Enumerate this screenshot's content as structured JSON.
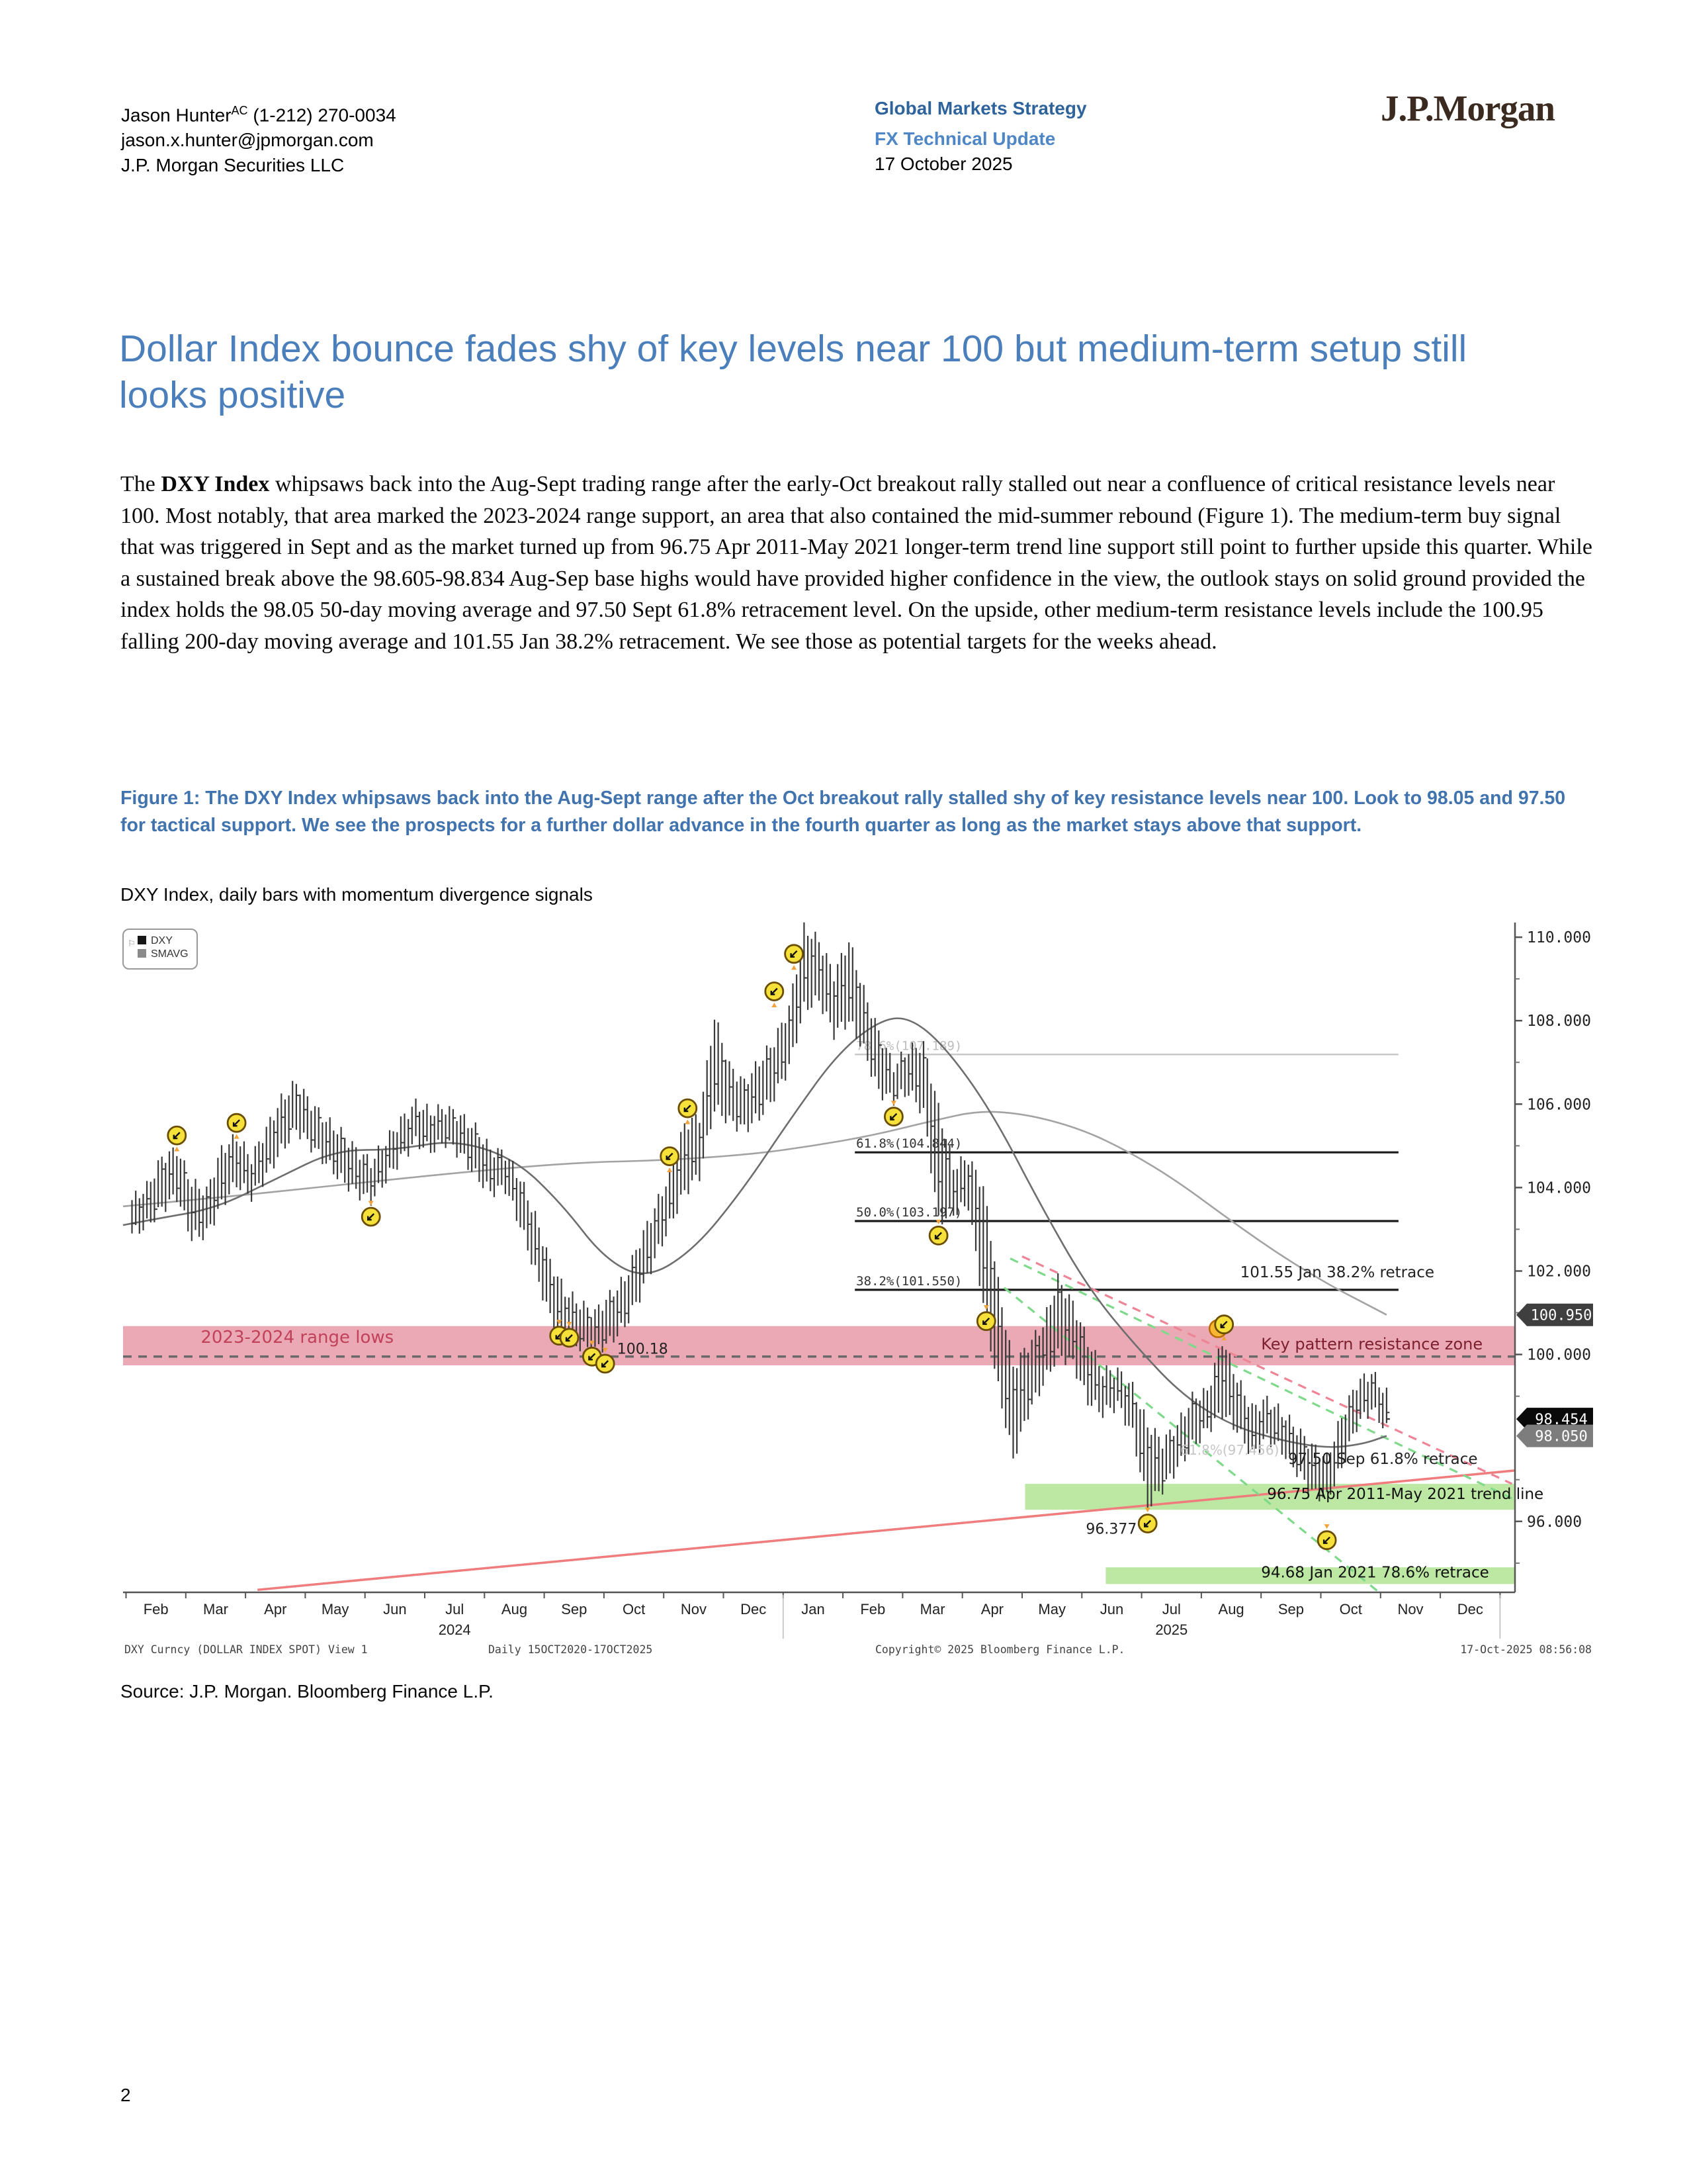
{
  "page": {
    "number": "2"
  },
  "header": {
    "author_name": "Jason Hunter",
    "author_sup": "AC",
    "author_phone": " (1-212) 270-0034",
    "author_email": "jason.x.hunter@jpmorgan.com",
    "author_firm": "J.P. Morgan Securities LLC",
    "strategy_line": "Global Markets Strategy",
    "report_type": "FX Technical Update",
    "date": "17 October 2025",
    "logo_text": "J.P.Morgan"
  },
  "title": "Dollar Index bounce fades shy of key levels near 100 but medium-term setup still looks positive",
  "body": {
    "lead": "The ",
    "bold": "DXY Index",
    "rest": " whipsaws back into the Aug-Sept trading range after the early-Oct breakout rally stalled out near a confluence of critical resistance levels near 100. Most notably, that area marked the 2023-2024 range support, an area that also contained the mid-summer rebound (Figure 1). The medium-term buy signal that was triggered in Sept and as the market turned up from 96.75 Apr 2011-May 2021 longer-term trend line support still point to further upside this quarter. While a sustained break above the 98.605-98.834 Aug-Sep base highs would have provided higher confidence in the view, the outlook stays on solid ground provided the index holds the 98.05 50-day moving average and 97.50 Sept 61.8% retracement level. On the upside, other medium-term resistance levels include the 100.95 falling 200-day moving average and 101.55 Jan 38.2% retracement. We see those as potential targets for the weeks ahead."
  },
  "figure": {
    "caption": "Figure 1: The DXY Index whipsaws back into the Aug-Sept range after the Oct breakout rally stalled shy of key resistance levels near 100. Look to 98.05 and 97.50 for tactical support. We see the prospects for a further dollar advance in the fourth quarter as long as the market stays above that support.",
    "subtitle": "DXY Index, daily bars with momentum divergence signals",
    "source": "Source: J.P. Morgan. Bloomberg Finance L.P."
  },
  "chart_data": {
    "type": "bar",
    "title": "DXY Index, daily bars with momentum divergence signals",
    "legend": [
      "DXY",
      "SMAVG"
    ],
    "colors": {
      "bar": "#383838",
      "ma50": "#6e6e6e",
      "ma200": "#a3a3a3",
      "pink_zone": "#e69aa7",
      "green_zone": "#b9e79e",
      "trend_solid": "#f07d7d",
      "dash_green": "#7fd98b",
      "dash_red": "#ee8496",
      "marker_fill": "#f5e13a",
      "marker_ring": "#6b4d00"
    },
    "x_axis": {
      "months": [
        "Feb",
        "Mar",
        "Apr",
        "May",
        "Jun",
        "Jul",
        "Aug",
        "Sep",
        "Oct",
        "Nov",
        "Dec",
        "Jan",
        "Feb",
        "Mar",
        "Apr",
        "May",
        "Jun",
        "Jul",
        "Aug",
        "Sep",
        "Oct",
        "Nov",
        "Dec"
      ],
      "year_labels": [
        {
          "text": "2024",
          "month_index": 5
        },
        {
          "text": "2025",
          "month_index": 17
        }
      ],
      "range_t": [
        -0.55,
        22.75
      ]
    },
    "y_axis": {
      "range": [
        94.3,
        110.35
      ],
      "major_ticks": [
        110,
        108,
        106,
        104,
        102,
        100,
        96
      ],
      "minor_ticks": [
        109,
        107,
        105,
        103,
        101,
        99,
        97,
        95
      ],
      "badges": [
        {
          "value": 100.95,
          "label": "100.950",
          "bg": "#3f3f3f"
        },
        {
          "value": 98.454,
          "label": "98.454",
          "bg": "#0a0a0a"
        },
        {
          "value": 98.05,
          "label": "98.050",
          "bg": "#7d7d7d"
        }
      ]
    },
    "bars": [
      [
        -0.4,
        102.9,
        103.7
      ],
      [
        -0.15,
        103.1,
        104.0
      ],
      [
        0.1,
        103.5,
        104.7
      ],
      [
        0.35,
        103.8,
        104.9
      ],
      [
        0.6,
        102.8,
        104.1
      ],
      [
        0.85,
        102.9,
        103.9
      ],
      [
        1.1,
        103.6,
        104.9
      ],
      [
        1.35,
        104.1,
        105.2
      ],
      [
        1.6,
        103.8,
        104.7
      ],
      [
        1.85,
        104.3,
        105.4
      ],
      [
        2.1,
        104.9,
        106.1
      ],
      [
        2.35,
        105.4,
        106.5
      ],
      [
        2.6,
        105.0,
        106.0
      ],
      [
        2.85,
        104.6,
        105.6
      ],
      [
        3.1,
        104.2,
        105.3
      ],
      [
        3.35,
        103.9,
        104.9
      ],
      [
        3.6,
        103.7,
        104.6
      ],
      [
        3.85,
        104.2,
        105.1
      ],
      [
        4.1,
        104.7,
        105.6
      ],
      [
        4.35,
        105.1,
        106.0
      ],
      [
        4.6,
        104.9,
        105.8
      ],
      [
        4.85,
        105.1,
        105.9
      ],
      [
        5.1,
        104.8,
        105.7
      ],
      [
        5.35,
        104.3,
        105.4
      ],
      [
        5.6,
        103.9,
        104.9
      ],
      [
        5.85,
        104.0,
        104.8
      ],
      [
        6.1,
        103.1,
        104.2
      ],
      [
        6.35,
        102.0,
        103.3
      ],
      [
        6.6,
        100.9,
        102.2
      ],
      [
        6.85,
        100.4,
        101.5
      ],
      [
        7.1,
        100.2,
        101.2
      ],
      [
        7.35,
        100.1,
        101.0
      ],
      [
        7.6,
        100.3,
        101.4
      ],
      [
        7.85,
        100.7,
        101.8
      ],
      [
        8.1,
        101.4,
        102.7
      ],
      [
        8.35,
        102.3,
        103.5
      ],
      [
        8.6,
        103.1,
        104.3
      ],
      [
        8.85,
        103.9,
        105.5
      ],
      [
        9.1,
        104.3,
        105.7
      ],
      [
        9.35,
        105.9,
        108.1
      ],
      [
        9.6,
        105.6,
        106.9
      ],
      [
        9.85,
        105.4,
        106.5
      ],
      [
        10.1,
        105.7,
        107.0
      ],
      [
        10.35,
        106.2,
        107.5
      ],
      [
        10.6,
        106.9,
        108.3
      ],
      [
        10.85,
        108.3,
        110.2
      ],
      [
        11.1,
        108.5,
        109.9
      ],
      [
        11.35,
        107.7,
        109.1
      ],
      [
        11.6,
        108.0,
        109.9
      ],
      [
        11.85,
        107.3,
        108.7
      ],
      [
        12.1,
        106.3,
        107.7
      ],
      [
        12.35,
        106.1,
        106.9
      ],
      [
        12.6,
        106.3,
        107.3
      ],
      [
        12.85,
        105.8,
        107.4
      ],
      [
        13.1,
        103.2,
        105.9
      ],
      [
        13.35,
        103.4,
        104.5
      ],
      [
        13.6,
        103.6,
        104.7
      ],
      [
        13.85,
        101.2,
        104.0
      ],
      [
        14.1,
        99.2,
        101.7
      ],
      [
        14.35,
        97.5,
        99.7
      ],
      [
        14.6,
        98.6,
        100.2
      ],
      [
        14.85,
        99.3,
        100.7
      ],
      [
        15.1,
        100.0,
        101.8
      ],
      [
        15.35,
        99.8,
        101.2
      ],
      [
        15.6,
        98.9,
        100.3
      ],
      [
        15.85,
        98.6,
        99.6
      ],
      [
        16.1,
        98.8,
        99.6
      ],
      [
        16.35,
        98.1,
        99.2
      ],
      [
        16.6,
        96.38,
        98.3
      ],
      [
        16.85,
        96.8,
        97.9
      ],
      [
        17.1,
        97.3,
        98.3
      ],
      [
        17.35,
        97.8,
        98.95
      ],
      [
        17.6,
        98.2,
        99.1
      ],
      [
        17.85,
        98.6,
        100.35
      ],
      [
        18.1,
        98.2,
        99.4
      ],
      [
        18.35,
        97.6,
        98.7
      ],
      [
        18.6,
        98.0,
        98.9
      ],
      [
        18.85,
        97.7,
        98.6
      ],
      [
        19.1,
        97.2,
        98.2
      ],
      [
        19.35,
        96.7,
        97.8
      ],
      [
        19.6,
        96.55,
        97.5
      ],
      [
        19.85,
        97.3,
        98.5
      ],
      [
        20.1,
        98.3,
        99.3
      ],
      [
        20.35,
        98.7,
        99.55
      ],
      [
        20.6,
        98.2,
        99.05
      ]
    ],
    "last_price": 98.454,
    "ma50": [
      [
        -0.55,
        103.1
      ],
      [
        0,
        103.25
      ],
      [
        1,
        103.5
      ],
      [
        2,
        104.2
      ],
      [
        3,
        104.9
      ],
      [
        4,
        104.9
      ],
      [
        5,
        105.15
      ],
      [
        6,
        104.7
      ],
      [
        6.8,
        103.6
      ],
      [
        7.5,
        102.3
      ],
      [
        8.2,
        101.8
      ],
      [
        9,
        102.5
      ],
      [
        9.8,
        103.9
      ],
      [
        10.6,
        105.6
      ],
      [
        11.4,
        107.2
      ],
      [
        12.1,
        108.0
      ],
      [
        12.6,
        108.1
      ],
      [
        13.2,
        107.4
      ],
      [
        14,
        105.8
      ],
      [
        14.8,
        103.6
      ],
      [
        15.6,
        101.6
      ],
      [
        16.4,
        100.2
      ],
      [
        17.2,
        99.0
      ],
      [
        18,
        98.3
      ],
      [
        18.8,
        97.95
      ],
      [
        19.6,
        97.75
      ],
      [
        20.2,
        97.85
      ],
      [
        20.6,
        98.05
      ]
    ],
    "ma200": [
      [
        -0.55,
        103.55
      ],
      [
        1,
        103.75
      ],
      [
        3,
        104.05
      ],
      [
        5,
        104.35
      ],
      [
        7,
        104.6
      ],
      [
        8.5,
        104.65
      ],
      [
        10,
        104.8
      ],
      [
        11,
        105.0
      ],
      [
        12,
        105.25
      ],
      [
        13,
        105.6
      ],
      [
        13.8,
        105.85
      ],
      [
        14.6,
        105.75
      ],
      [
        15.5,
        105.4
      ],
      [
        16.3,
        104.85
      ],
      [
        17.1,
        104.15
      ],
      [
        18,
        103.2
      ],
      [
        18.8,
        102.4
      ],
      [
        19.6,
        101.7
      ],
      [
        20.2,
        101.25
      ],
      [
        20.6,
        100.95
      ]
    ],
    "markers": [
      [
        0.35,
        105.25,
        "s"
      ],
      [
        1.35,
        105.55,
        "s"
      ],
      [
        3.6,
        103.3,
        "b"
      ],
      [
        6.75,
        100.45,
        "b"
      ],
      [
        6.92,
        100.4,
        "b"
      ],
      [
        7.3,
        99.95,
        "b"
      ],
      [
        7.52,
        99.78,
        "b"
      ],
      [
        8.6,
        104.75,
        "s"
      ],
      [
        8.9,
        105.9,
        "s"
      ],
      [
        10.35,
        108.7,
        "s"
      ],
      [
        10.68,
        109.6,
        "s"
      ],
      [
        12.35,
        105.7,
        "b"
      ],
      [
        13.1,
        102.85,
        "b"
      ],
      [
        13.9,
        100.8,
        "b"
      ],
      [
        16.6,
        95.95,
        "b"
      ],
      [
        17.78,
        100.62,
        "g"
      ],
      [
        17.88,
        100.72,
        "s"
      ],
      [
        19.6,
        95.55,
        "b"
      ]
    ],
    "zones": [
      {
        "name": "pink_resistance",
        "t0": -0.55,
        "t1": 22.75,
        "v0": 99.74,
        "v1": 100.68,
        "fill": "#e69aa7",
        "opacity": 0.85
      },
      {
        "name": "green_trendline_zone",
        "t0": 14.55,
        "t1": 22.75,
        "v0": 96.28,
        "v1": 96.9,
        "fill": "#b9e79e",
        "opacity": 0.95
      },
      {
        "name": "green_retrace_zone",
        "t0": 15.9,
        "t1": 22.75,
        "v0": 94.5,
        "v1": 94.9,
        "fill": "#b9e79e",
        "opacity": 0.95
      }
    ],
    "dashed_level": {
      "value": 99.95,
      "color": "#6a6a6a"
    },
    "fib_span": [
      11.7,
      20.8
    ],
    "fib_lines": [
      {
        "value": 107.189,
        "label": "78.6%(107.189)",
        "faint": true
      },
      {
        "value": 104.844,
        "label": "61.8%(104.844)",
        "faint": false
      },
      {
        "value": 103.197,
        "label": "50.0%(103.197)",
        "faint": false
      },
      {
        "value": 101.55,
        "label": "38.2%(101.550)",
        "faint": false
      }
    ],
    "trend_lines": [
      {
        "name": "apr2011-may2021-trendline",
        "style": "solid",
        "color": "#f07d7d",
        "w": 3.5,
        "from": [
          1.7,
          94.36
        ],
        "to": [
          22.75,
          97.22
        ]
      },
      {
        "name": "wedge-green-steep",
        "style": "dashed",
        "color": "#7fd98b",
        "w": 3.2,
        "from": [
          14.2,
          101.6
        ],
        "to": [
          20.45,
          94.33
        ]
      },
      {
        "name": "wedge-green-upper",
        "style": "dashed",
        "color": "#7fd98b",
        "w": 3.2,
        "from": [
          14.3,
          102.3
        ],
        "to": [
          22.7,
          96.55
        ]
      },
      {
        "name": "wedge-red-upper",
        "style": "dashed",
        "color": "#ee8496",
        "w": 3.2,
        "from": [
          14.5,
          102.35
        ],
        "to": [
          22.7,
          96.9
        ]
      }
    ],
    "annotations": [
      {
        "text": "2023-2024 range lows",
        "t": 0.75,
        "v": 100.28,
        "color": "#c2415a",
        "size": 26,
        "anchor": "start"
      },
      {
        "text": "Key pattern resistance zone",
        "t": 18.5,
        "v": 100.12,
        "color": "#7d1f2e",
        "size": 24,
        "anchor": "start"
      },
      {
        "text": "101.55 Jan 38.2% retrace",
        "t": 18.15,
        "v": 101.85,
        "color": "#222222",
        "size": 23,
        "anchor": "start"
      },
      {
        "text": "100.18",
        "t": 7.72,
        "v": 100.02,
        "color": "#222222",
        "size": 22,
        "anchor": "start"
      },
      {
        "text": "96.377",
        "t": 16.42,
        "v": 95.7,
        "color": "#222222",
        "size": 22,
        "anchor": "end"
      },
      {
        "text": "61.8%(97.456)",
        "t": 17.15,
        "v": 97.6,
        "color": "#c6c6c6",
        "size": 20,
        "anchor": "start"
      },
      {
        "text": "97.50 Sep 61.8% retrace",
        "t": 18.95,
        "v": 97.38,
        "color": "#222222",
        "size": 23,
        "anchor": "start"
      },
      {
        "text": "96.75 Apr 2011-May 2021 trend line",
        "t": 18.6,
        "v": 96.54,
        "color": "#111111",
        "size": 23,
        "anchor": "start"
      },
      {
        "text": "94.68 Jan 2021 78.6% retrace",
        "t": 18.5,
        "v": 94.66,
        "color": "#111111",
        "size": 23,
        "anchor": "start"
      }
    ],
    "footer": {
      "left": "DXY Curncy (DOLLAR INDEX SPOT) View 1",
      "period": "Daily 15OCT2020-17OCT2025",
      "copyright": "Copyright© 2025 Bloomberg Finance L.P.",
      "timestamp": "17-Oct-2025 08:56:08"
    }
  }
}
